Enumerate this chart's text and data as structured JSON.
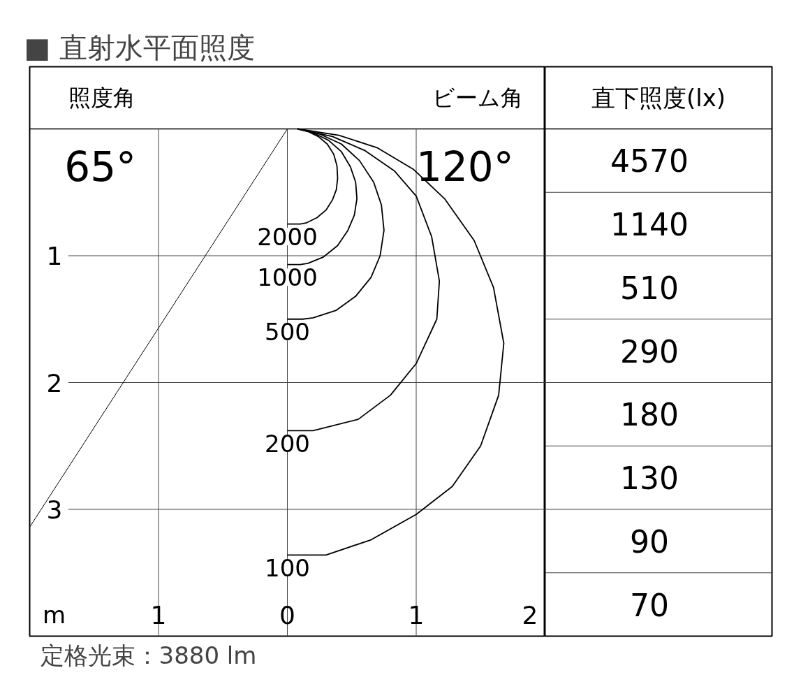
{
  "chart_data": [
    {
      "type": "line",
      "title": "■ 直射水平面照度",
      "xlabel": "m",
      "xlim": [
        -2,
        2
      ],
      "ylim": [
        4,
        0
      ],
      "xticks": [
        {
          "value": -1,
          "label": "1"
        },
        0,
        1,
        2
      ],
      "yticks": [
        1,
        2,
        3
      ],
      "grid": true,
      "series": [
        {
          "color": "#000000",
          "x": [
            0,
            -2
          ],
          "values": [
            0,
            3.14
          ]
        },
        {
          "name": "2000",
          "color": "#000000",
          "x": [
            0.08,
            0.16,
            0.24,
            0.31,
            0.36,
            0.385,
            0.39,
            0.38,
            0.35,
            0.3,
            0.23,
            0.15,
            0.1,
            0
          ],
          "values": [
            0,
            0.02,
            0.06,
            0.12,
            0.2,
            0.29,
            0.39,
            0.48,
            0.56,
            0.64,
            0.7,
            0.74,
            0.75,
            0.75
          ]
        },
        {
          "name": "1000",
          "color": "#000000",
          "x": [
            0.08,
            0.2,
            0.32,
            0.42,
            0.49,
            0.53,
            0.54,
            0.52,
            0.47,
            0.39,
            0.28,
            0.16,
            0.1,
            0
          ],
          "values": [
            0,
            0.03,
            0.09,
            0.18,
            0.3,
            0.42,
            0.55,
            0.68,
            0.8,
            0.92,
            1.01,
            1.06,
            1.07,
            1.07
          ]
        },
        {
          "name": "500",
          "color": "#000000",
          "x": [
            0.08,
            0.25,
            0.42,
            0.56,
            0.67,
            0.73,
            0.75,
            0.72,
            0.65,
            0.53,
            0.38,
            0.2,
            0.12,
            0
          ],
          "values": [
            0,
            0.04,
            0.12,
            0.25,
            0.42,
            0.6,
            0.8,
            1.0,
            1.17,
            1.32,
            1.43,
            1.49,
            1.5,
            1.5
          ]
        },
        {
          "name": "200",
          "color": "#000000",
          "x": [
            0.08,
            0.35,
            0.6,
            0.83,
            1.0,
            1.12,
            1.18,
            1.16,
            1.0,
            0.8,
            0.55,
            0.2,
            0
          ],
          "values": [
            0,
            0.06,
            0.17,
            0.33,
            0.53,
            0.85,
            1.2,
            1.5,
            1.85,
            2.1,
            2.29,
            2.38,
            2.38
          ]
        },
        {
          "name": "100",
          "color": "#000000",
          "x": [
            0.08,
            0.4,
            0.7,
            0.98,
            1.22,
            1.45,
            1.6,
            1.68,
            1.64,
            1.5,
            1.28,
            1.0,
            0.65,
            0.3,
            0
          ],
          "values": [
            0,
            0.05,
            0.15,
            0.32,
            0.55,
            0.88,
            1.25,
            1.69,
            2.1,
            2.5,
            2.82,
            3.04,
            3.24,
            3.36,
            3.36
          ]
        }
      ],
      "annotations": [
        "照度角",
        "ビーム角",
        "65°",
        "120°",
        "定格光束：3880 lm"
      ]
    },
    {
      "type": "other",
      "title": "直下照度(lx)",
      "values": [
        4570,
        1140,
        510,
        290,
        180,
        130,
        90,
        70
      ],
      "data_labels": true
    }
  ]
}
